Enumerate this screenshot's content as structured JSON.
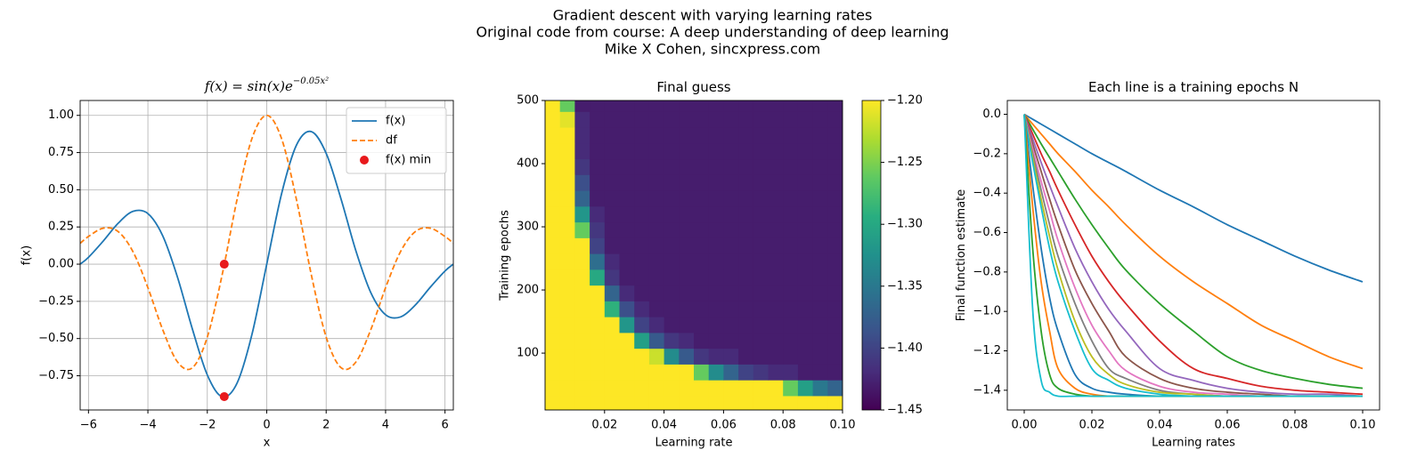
{
  "title_lines": [
    "Gradient descent with varying learning rates",
    "Original code from course: A deep understanding of deep learning",
    "Mike X Cohen, sincxpress.com"
  ],
  "chart_data": [
    {
      "type": "line",
      "title": "f(x) = sin(x)e",
      "title_superscript": "−0.05x²",
      "xlabel": "x",
      "ylabel": "f(x)",
      "x": [
        -6.28,
        -6,
        -5.5,
        -5,
        -4.5,
        -4,
        -3.5,
        -3,
        -2.5,
        -2,
        -1.5,
        -1,
        -0.5,
        0,
        0.5,
        1,
        1.5,
        2,
        2.5,
        3,
        3.5,
        4,
        4.5,
        5,
        5.5,
        6,
        6.28
      ],
      "series": [
        {
          "name": "f(x)",
          "color": "#1f77b4",
          "values": [
            0,
            0.046,
            0.156,
            0.275,
            0.355,
            0.34,
            0.19,
            -0.09,
            -0.438,
            -0.745,
            -0.891,
            -0.8,
            -0.474,
            0,
            0.474,
            0.8,
            0.891,
            0.745,
            0.438,
            0.09,
            -0.19,
            -0.34,
            -0.355,
            -0.275,
            -0.156,
            -0.046,
            0
          ]
        },
        {
          "name": "df",
          "color": "#ff7f0e",
          "dashed": true,
          "values": [
            0.14,
            0.186,
            0.242,
            0.219,
            0.083,
            -0.158,
            -0.441,
            -0.658,
            -0.696,
            -0.49,
            -0.071,
            0.434,
            0.843,
            1,
            0.843,
            0.434,
            -0.071,
            -0.49,
            -0.696,
            -0.658,
            -0.441,
            -0.158,
            0.083,
            0.219,
            0.242,
            0.186,
            0.14
          ]
        },
        {
          "name": "f(x) min",
          "color": "#e8191c",
          "type": "scatter",
          "x": [
            -1.43,
            -1.43
          ],
          "values": [
            -0.89,
            0
          ]
        }
      ],
      "xlim": [
        -6.28,
        6.28
      ],
      "ylim": [
        -0.98,
        1.1
      ],
      "xticks": [
        {
          "value": -6,
          "label": "−6"
        },
        {
          "value": -4,
          "label": "−4"
        },
        {
          "value": -2,
          "label": "−2"
        },
        0,
        2,
        4,
        6
      ],
      "yticks": [
        {
          "value": -0.75,
          "label": "−0.75"
        },
        {
          "value": -0.5,
          "label": "−0.50"
        },
        {
          "value": -0.25,
          "label": "−0.25"
        },
        {
          "value": 0,
          "label": "0.00"
        },
        {
          "value": 0.25,
          "label": "0.25"
        },
        {
          "value": 0.5,
          "label": "0.50"
        },
        {
          "value": 0.75,
          "label": "0.75"
        },
        {
          "value": 1,
          "label": "1.00"
        }
      ],
      "grid": true,
      "legend": "upper right"
    },
    {
      "type": "heatmap",
      "title": "Final guess",
      "xlabel": "Learning rate",
      "ylabel": "Training epochs",
      "x": [
        0.0025,
        0.0075,
        0.0125,
        0.0175,
        0.0225,
        0.0275,
        0.0325,
        0.0375,
        0.0425,
        0.0475,
        0.0525,
        0.0575,
        0.0625,
        0.0675,
        0.0725,
        0.0775,
        0.0825,
        0.0875,
        0.0925,
        0.0975
      ],
      "y": [
        20,
        45,
        70,
        95,
        120,
        145,
        170,
        195,
        220,
        245,
        270,
        295,
        320,
        345,
        370,
        395,
        420,
        445,
        470,
        495
      ],
      "z": [
        [
          0,
          0,
          0,
          0,
          0,
          0,
          0,
          0,
          0,
          0,
          0,
          0,
          0,
          0,
          0,
          0,
          0,
          0,
          0,
          0
        ],
        [
          0,
          0,
          0,
          0,
          0,
          0,
          0,
          0,
          0,
          0,
          -0.06,
          -0.48,
          -0.75,
          -0.96,
          -1.1,
          -1.2,
          -1.26,
          -1.31,
          -1.35,
          -1.37
        ],
        [
          0,
          0,
          0,
          0,
          0,
          0,
          0,
          -0.53,
          -0.91,
          -1.13,
          -1.26,
          -1.33,
          -1.37,
          -1.4,
          -1.41,
          -1.42,
          -1.42,
          -1.43,
          -1.43,
          -1.43
        ],
        [
          0,
          0,
          0,
          0,
          0,
          -0.51,
          -0.99,
          -1.22,
          -1.33,
          -1.38,
          -1.41,
          -1.42,
          -1.42,
          -1.43,
          -1.43,
          -1.43,
          -1.43,
          -1.43,
          -1.43,
          -1.43
        ],
        [
          0,
          0,
          0,
          0,
          -0.63,
          -1.12,
          -1.31,
          -1.38,
          -1.41,
          -1.42,
          -1.43,
          -1.43,
          -1.43,
          -1.43,
          -1.43,
          -1.43,
          -1.43,
          -1.43,
          -1.43,
          -1.43
        ],
        [
          0,
          0,
          0,
          -0.4,
          -1.1,
          -1.32,
          -1.4,
          -1.42,
          -1.43,
          -1.43,
          -1.43,
          -1.43,
          -1.43,
          -1.43,
          -1.43,
          -1.43,
          -1.43,
          -1.43,
          -1.43,
          -1.43
        ],
        [
          0,
          0,
          0,
          -0.91,
          -1.29,
          -1.39,
          -1.42,
          -1.43,
          -1.43,
          -1.43,
          -1.43,
          -1.43,
          -1.43,
          -1.43,
          -1.43,
          -1.43,
          -1.43,
          -1.43,
          -1.43,
          -1.43
        ],
        [
          0,
          0,
          -0.22,
          -1.17,
          -1.37,
          -1.42,
          -1.43,
          -1.43,
          -1.43,
          -1.43,
          -1.43,
          -1.43,
          -1.43,
          -1.43,
          -1.43,
          -1.43,
          -1.43,
          -1.43,
          -1.43,
          -1.43
        ],
        [
          0,
          0,
          -0.69,
          -1.3,
          -1.41,
          -1.43,
          -1.43,
          -1.43,
          -1.43,
          -1.43,
          -1.43,
          -1.43,
          -1.43,
          -1.43,
          -1.43,
          -1.43,
          -1.43,
          -1.43,
          -1.43,
          -1.43
        ],
        [
          0,
          0,
          -0.97,
          -1.36,
          -1.42,
          -1.43,
          -1.43,
          -1.43,
          -1.43,
          -1.43,
          -1.43,
          -1.43,
          -1.43,
          -1.43,
          -1.43,
          -1.43,
          -1.43,
          -1.43,
          -1.43,
          -1.43
        ],
        [
          0,
          0,
          -1.15,
          -1.4,
          -1.43,
          -1.43,
          -1.43,
          -1.43,
          -1.43,
          -1.43,
          -1.43,
          -1.43,
          -1.43,
          -1.43,
          -1.43,
          -1.43,
          -1.43,
          -1.43,
          -1.43,
          -1.43
        ],
        [
          0,
          0,
          -1.26,
          -1.41,
          -1.43,
          -1.43,
          -1.43,
          -1.43,
          -1.43,
          -1.43,
          -1.43,
          -1.43,
          -1.43,
          -1.43,
          -1.43,
          -1.43,
          -1.43,
          -1.43,
          -1.43,
          -1.43
        ],
        [
          0,
          -0.15,
          -1.32,
          -1.42,
          -1.43,
          -1.43,
          -1.43,
          -1.43,
          -1.43,
          -1.43,
          -1.43,
          -1.43,
          -1.43,
          -1.43,
          -1.43,
          -1.43,
          -1.43,
          -1.43,
          -1.43,
          -1.43
        ],
        [
          0,
          -0.48,
          -1.37,
          -1.43,
          -1.43,
          -1.43,
          -1.43,
          -1.43,
          -1.43,
          -1.43,
          -1.43,
          -1.43,
          -1.43,
          -1.43,
          -1.43,
          -1.43,
          -1.43,
          -1.43,
          -1.43,
          -1.43
        ],
        [
          0,
          -0.72,
          -1.39,
          -1.43,
          -1.43,
          -1.43,
          -1.43,
          -1.43,
          -1.43,
          -1.43,
          -1.43,
          -1.43,
          -1.43,
          -1.43,
          -1.43,
          -1.43,
          -1.43,
          -1.43,
          -1.43,
          -1.43
        ],
        [
          0,
          -0.9,
          -1.41,
          -1.43,
          -1.43,
          -1.43,
          -1.43,
          -1.43,
          -1.43,
          -1.43,
          -1.43,
          -1.43,
          -1.43,
          -1.43,
          -1.43,
          -1.43,
          -1.43,
          -1.43,
          -1.43,
          -1.43
        ],
        [
          0,
          -1.03,
          -1.42,
          -1.43,
          -1.43,
          -1.43,
          -1.43,
          -1.43,
          -1.43,
          -1.43,
          -1.43,
          -1.43,
          -1.43,
          -1.43,
          -1.43,
          -1.43,
          -1.43,
          -1.43,
          -1.43,
          -1.43
        ],
        [
          0,
          -1.14,
          -1.42,
          -1.43,
          -1.43,
          -1.43,
          -1.43,
          -1.43,
          -1.43,
          -1.43,
          -1.43,
          -1.43,
          -1.43,
          -1.43,
          -1.43,
          -1.43,
          -1.43,
          -1.43,
          -1.43,
          -1.43
        ],
        [
          0,
          -1.21,
          -1.42,
          -1.43,
          -1.43,
          -1.43,
          -1.43,
          -1.43,
          -1.43,
          -1.43,
          -1.43,
          -1.43,
          -1.43,
          -1.43,
          -1.43,
          -1.43,
          -1.43,
          -1.43,
          -1.43,
          -1.43
        ],
        [
          0,
          -1.26,
          -1.43,
          -1.43,
          -1.43,
          -1.43,
          -1.43,
          -1.43,
          -1.43,
          -1.43,
          -1.43,
          -1.43,
          -1.43,
          -1.43,
          -1.43,
          -1.43,
          -1.43,
          -1.43,
          -1.43,
          -1.43
        ]
      ],
      "xlim": [
        0,
        0.1
      ],
      "ylim": [
        10,
        500
      ],
      "xticks": [
        {
          "value": 0.02,
          "label": "0.02"
        },
        {
          "value": 0.04,
          "label": "0.04"
        },
        {
          "value": 0.06,
          "label": "0.06"
        },
        {
          "value": 0.08,
          "label": "0.08"
        },
        {
          "value": 0.1,
          "label": "0.10"
        }
      ],
      "yticks": [
        100,
        200,
        300,
        400,
        500
      ],
      "clim": [
        -1.45,
        -1.2
      ],
      "colorbar_ticks": [
        {
          "value": -1.2,
          "label": "−1.20"
        },
        {
          "value": -1.25,
          "label": "−1.25"
        },
        {
          "value": -1.3,
          "label": "−1.30"
        },
        {
          "value": -1.35,
          "label": "−1.35"
        },
        {
          "value": -1.4,
          "label": "−1.40"
        },
        {
          "value": -1.45,
          "label": "−1.45"
        }
      ],
      "colormap": [
        "#440154",
        "#472d7b",
        "#3b528b",
        "#2c728e",
        "#21918c",
        "#28ae80",
        "#5ec962",
        "#addc30",
        "#fde725"
      ]
    },
    {
      "type": "line",
      "title": "Each line is a training epochs N",
      "xlabel": "Learning rates",
      "ylabel": "Final function estimate",
      "x": [
        0,
        0.0025,
        0.005,
        0.0075,
        0.01,
        0.015,
        0.02,
        0.025,
        0.03,
        0.04,
        0.05,
        0.06,
        0.07,
        0.08,
        0.09,
        0.1
      ],
      "series": [
        {
          "color": "#1f77b4",
          "values": [
            0,
            -0.025,
            -0.05,
            -0.075,
            -0.1,
            -0.15,
            -0.2,
            -0.245,
            -0.29,
            -0.385,
            -0.47,
            -0.56,
            -0.64,
            -0.72,
            -0.79,
            -0.85
          ]
        },
        {
          "color": "#ff7f0e",
          "values": [
            0,
            -0.05,
            -0.1,
            -0.15,
            -0.2,
            -0.29,
            -0.385,
            -0.47,
            -0.56,
            -0.72,
            -0.85,
            -0.96,
            -1.07,
            -1.15,
            -1.23,
            -1.29
          ]
        },
        {
          "color": "#2ca02c",
          "values": [
            0,
            -0.075,
            -0.15,
            -0.22,
            -0.29,
            -0.43,
            -0.56,
            -0.68,
            -0.79,
            -0.96,
            -1.1,
            -1.23,
            -1.3,
            -1.34,
            -1.37,
            -1.39
          ]
        },
        {
          "color": "#d62728",
          "values": [
            0,
            -0.1,
            -0.2,
            -0.29,
            -0.385,
            -0.56,
            -0.72,
            -0.85,
            -0.96,
            -1.15,
            -1.29,
            -1.34,
            -1.38,
            -1.4,
            -1.41,
            -1.42
          ]
        },
        {
          "color": "#9467bd",
          "values": [
            0,
            -0.125,
            -0.245,
            -0.36,
            -0.47,
            -0.68,
            -0.85,
            -0.99,
            -1.1,
            -1.29,
            -1.35,
            -1.39,
            -1.41,
            -1.42,
            -1.42,
            -1.43
          ]
        },
        {
          "color": "#8c564b",
          "values": [
            0,
            -0.15,
            -0.29,
            -0.43,
            -0.56,
            -0.79,
            -0.96,
            -1.1,
            -1.23,
            -1.34,
            -1.39,
            -1.41,
            -1.42,
            -1.43,
            -1.43,
            -1.43
          ]
        },
        {
          "color": "#e377c2",
          "values": [
            0,
            -0.175,
            -0.34,
            -0.49,
            -0.64,
            -0.88,
            -1.07,
            -1.2,
            -1.3,
            -1.38,
            -1.41,
            -1.42,
            -1.43,
            -1.43,
            -1.43,
            -1.43
          ]
        },
        {
          "color": "#7f7f7f",
          "values": [
            0,
            -0.2,
            -0.385,
            -0.56,
            -0.72,
            -0.96,
            -1.15,
            -1.29,
            -1.34,
            -1.4,
            -1.42,
            -1.43,
            -1.43,
            -1.43,
            -1.43,
            -1.43
          ]
        },
        {
          "color": "#bcbd22",
          "values": [
            0,
            -0.22,
            -0.43,
            -0.62,
            -0.79,
            -1.05,
            -1.23,
            -1.32,
            -1.37,
            -1.41,
            -1.42,
            -1.43,
            -1.43,
            -1.43,
            -1.43,
            -1.43
          ]
        },
        {
          "color": "#17becf",
          "values": [
            0,
            -0.245,
            -0.47,
            -0.68,
            -0.85,
            -1.1,
            -1.29,
            -1.35,
            -1.39,
            -1.42,
            -1.43,
            -1.43,
            -1.43,
            -1.43,
            -1.43,
            -1.43
          ]
        },
        {
          "color": "#1f77b4",
          "values": [
            0,
            -0.36,
            -0.68,
            -0.93,
            -1.1,
            -1.32,
            -1.39,
            -1.41,
            -1.42,
            -1.43,
            -1.43,
            -1.43,
            -1.43,
            -1.43,
            -1.43,
            -1.43
          ]
        },
        {
          "color": "#ff7f0e",
          "values": [
            0,
            -0.47,
            -0.85,
            -1.1,
            -1.29,
            -1.39,
            -1.42,
            -1.43,
            -1.43,
            -1.43,
            -1.43,
            -1.43,
            -1.43,
            -1.43,
            -1.43,
            -1.43
          ]
        },
        {
          "color": "#2ca02c",
          "values": [
            0,
            -0.68,
            -1.1,
            -1.32,
            -1.39,
            -1.42,
            -1.43,
            -1.43,
            -1.43,
            -1.43,
            -1.43,
            -1.43,
            -1.43,
            -1.43,
            -1.43,
            -1.43
          ]
        },
        {
          "color": "#17becf",
          "values": [
            0,
            -0.99,
            -1.35,
            -1.41,
            -1.43,
            -1.43,
            -1.43,
            -1.43,
            -1.43,
            -1.43,
            -1.43,
            -1.43,
            -1.43,
            -1.43,
            -1.43,
            -1.43
          ]
        }
      ],
      "xlim": [
        -0.005,
        0.105
      ],
      "ylim": [
        -1.5,
        0.07
      ],
      "xticks": [
        {
          "value": 0,
          "label": "0.00"
        },
        {
          "value": 0.02,
          "label": "0.02"
        },
        {
          "value": 0.04,
          "label": "0.04"
        },
        {
          "value": 0.06,
          "label": "0.06"
        },
        {
          "value": 0.08,
          "label": "0.08"
        },
        {
          "value": 0.1,
          "label": "0.10"
        }
      ],
      "yticks": [
        {
          "value": -1.4,
          "label": "−1.4"
        },
        {
          "value": -1.2,
          "label": "−1.2"
        },
        {
          "value": -1,
          "label": "−1.0"
        },
        {
          "value": -0.8,
          "label": "−0.8"
        },
        {
          "value": -0.6,
          "label": "−0.6"
        },
        {
          "value": -0.4,
          "label": "−0.4"
        },
        {
          "value": -0.2,
          "label": "−0.2"
        },
        {
          "value": 0,
          "label": "0.0"
        }
      ]
    }
  ]
}
